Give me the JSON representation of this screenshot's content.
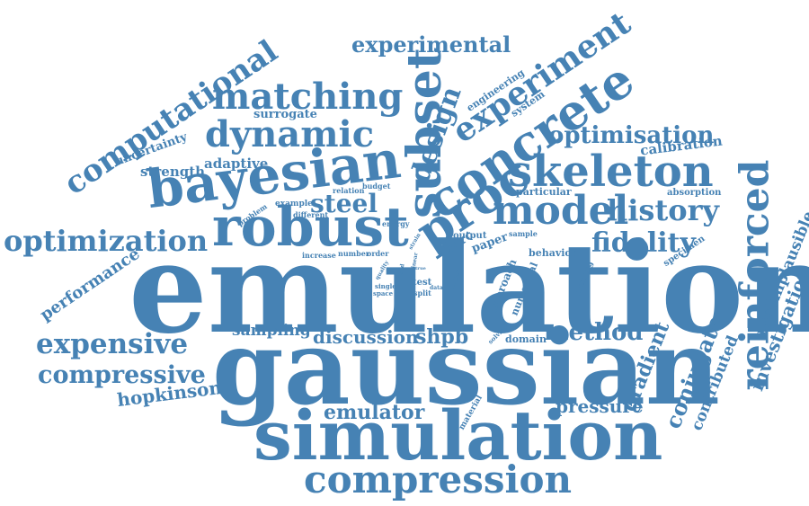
{
  "colors": {
    "word": "#4682b4",
    "background": "#ffffff"
  },
  "words": [
    "emulation",
    "gaussian",
    "simulation",
    "compression",
    "robust",
    "bayesian",
    "subset",
    "concrete",
    "proc",
    "skeleton",
    "model",
    "reinforced",
    "matching",
    "dynamic",
    "experiment",
    "computational",
    "optimization",
    "expensive",
    "compressive",
    "experimental",
    "optimisation",
    "history",
    "fidelity",
    "design",
    "steel",
    "method",
    "hopkinson",
    "emulator",
    "pressure",
    "conjugate",
    "gradient",
    "investigation",
    "nonimplausible",
    "contributed",
    "performance",
    "discussion",
    "shpb",
    "sampling",
    "uncertainty",
    "strength",
    "adaptive",
    "surrogate",
    "calibration",
    "absorption",
    "particular",
    "engineering",
    "system",
    "relation",
    "budget",
    "example",
    "different",
    "problem",
    "energy",
    "increase",
    "number",
    "order",
    "ssrc",
    "output",
    "paper",
    "sample",
    "behavior",
    "specimen",
    "approach",
    "numerical",
    "training",
    "domain",
    "solving",
    "material",
    "test",
    "data",
    "input",
    "split",
    "field",
    "linear",
    "strain",
    "quality",
    "single",
    "space",
    "true"
  ]
}
